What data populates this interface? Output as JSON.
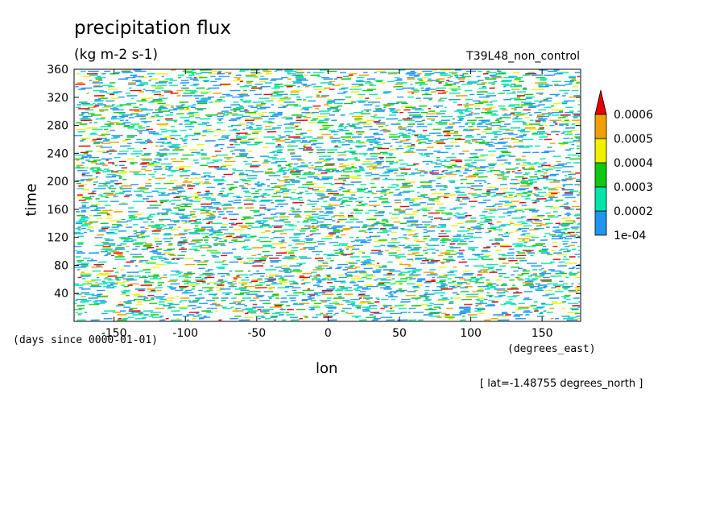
{
  "chart_data": {
    "type": "heatmap",
    "title": "precipitation flux",
    "units": "(kg m-2 s-1)",
    "run_label": "T39L48_non_control",
    "xlabel": "lon",
    "ylabel": "time",
    "x_units": "(degrees_east)",
    "time_units": "(days since 0000-01-01)",
    "note": "[ lat=-1.48755 degrees_north ]",
    "x_range": [
      -178,
      177
    ],
    "y_range": [
      0,
      360
    ],
    "x_ticks": [
      -150,
      -100,
      -50,
      0,
      50,
      100,
      150
    ],
    "x_tick_labels": [
      "-150",
      "-100",
      "-50",
      "0",
      "50",
      "100",
      "150"
    ],
    "y_ticks": [
      40,
      80,
      120,
      160,
      200,
      240,
      280,
      320,
      360
    ],
    "y_tick_labels": [
      "40",
      "80",
      "120",
      "160",
      "200",
      "240",
      "280",
      "320",
      "360"
    ],
    "colorbar": {
      "levels": [
        0.0001,
        0.0002,
        0.0003,
        0.0004,
        0.0005,
        0.0006
      ],
      "level_labels": [
        "1e-04",
        "0.0002",
        "0.0003",
        "0.0004",
        "0.0005",
        "0.0006"
      ],
      "colors": [
        "#1e96f0",
        "#00e6aa",
        "#10c810",
        "#f0f000",
        "#f0a000",
        "#e60000"
      ],
      "extend": "max"
    },
    "grid": false,
    "legend_position": "right"
  }
}
